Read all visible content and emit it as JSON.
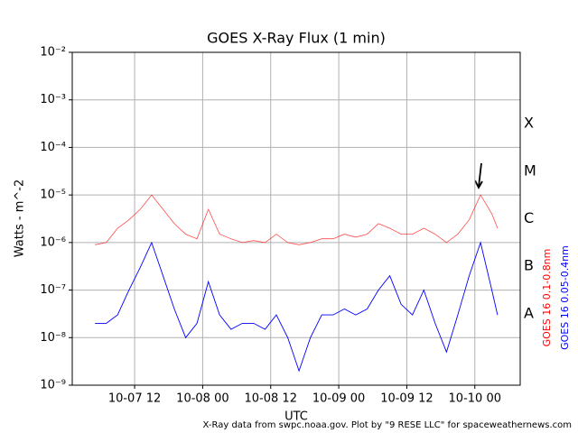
{
  "chart_data": {
    "type": "line",
    "title": "GOES X-Ray Flux (1 min)",
    "xlabel": "UTC",
    "ylabel": "Watts - m^-2",
    "footer": "X-Ray data from swpc.noaa.gov. Plot by \"9 RESE LLC\" for spaceweathernews.com",
    "flare_classes": [
      "A",
      "B",
      "C",
      "M",
      "X"
    ],
    "log_scale": true,
    "grid": true,
    "xlim": [
      "10-07 01",
      "10-10 08"
    ],
    "xticks": [
      "10-07 12",
      "10-08 00",
      "10-08 12",
      "10-09 00",
      "10-09 12",
      "10-10 00"
    ],
    "ylim": [
      1e-09,
      0.01
    ],
    "yticks": [
      {
        "value": 1e-09,
        "label": "10⁻⁹"
      },
      {
        "value": 1e-08,
        "label": "10⁻⁸"
      },
      {
        "value": 1e-07,
        "label": "10⁻⁷"
      },
      {
        "value": 1e-06,
        "label": "10⁻⁶"
      },
      {
        "value": 1e-05,
        "label": "10⁻⁵"
      },
      {
        "value": 0.0001,
        "label": "10⁻⁴"
      },
      {
        "value": 0.001,
        "label": "10⁻³"
      },
      {
        "value": 0.01,
        "label": "10⁻²"
      }
    ],
    "x": [
      "10-07 05",
      "10-07 07",
      "10-07 09",
      "10-07 11",
      "10-07 13",
      "10-07 15",
      "10-07 17",
      "10-07 19",
      "10-07 21",
      "10-07 23",
      "10-08 01",
      "10-08 03",
      "10-08 05",
      "10-08 07",
      "10-08 09",
      "10-08 11",
      "10-08 13",
      "10-08 15",
      "10-08 17",
      "10-08 19",
      "10-08 21",
      "10-08 23",
      "10-09 01",
      "10-09 03",
      "10-09 05",
      "10-09 07",
      "10-09 09",
      "10-09 11",
      "10-09 13",
      "10-09 15",
      "10-09 17",
      "10-09 19",
      "10-09 21",
      "10-09 23",
      "10-10 01",
      "10-10 03",
      "10-10 04"
    ],
    "series": [
      {
        "name": "GOES 16 0.1-0.8nm",
        "color": "#ff0000",
        "values": [
          9e-07,
          1e-06,
          2e-06,
          3e-06,
          5e-06,
          1e-05,
          5e-06,
          2.5e-06,
          1.5e-06,
          1.2e-06,
          5e-06,
          1.5e-06,
          1.2e-06,
          1e-06,
          1.1e-06,
          1e-06,
          1.5e-06,
          1e-06,
          9e-07,
          1e-06,
          1.2e-06,
          1.2e-06,
          1.5e-06,
          1.3e-06,
          1.5e-06,
          2.5e-06,
          2e-06,
          1.5e-06,
          1.5e-06,
          2e-06,
          1.5e-06,
          1e-06,
          1.5e-06,
          3e-06,
          1e-05,
          4e-06,
          2e-06
        ]
      },
      {
        "name": "GOES 16 0.05-0.4nm",
        "color": "#0000ff",
        "values": [
          2e-08,
          2e-08,
          3e-08,
          1e-07,
          3e-07,
          1e-06,
          2e-07,
          4e-08,
          1e-08,
          2e-08,
          1.5e-07,
          3e-08,
          1.5e-08,
          2e-08,
          2e-08,
          1.5e-08,
          3e-08,
          1e-08,
          2e-09,
          1e-08,
          3e-08,
          3e-08,
          4e-08,
          3e-08,
          4e-08,
          1e-07,
          2e-07,
          5e-08,
          3e-08,
          1e-07,
          2e-08,
          5e-09,
          3e-08,
          2e-07,
          1e-06,
          1e-07,
          3e-08
        ]
      }
    ]
  }
}
